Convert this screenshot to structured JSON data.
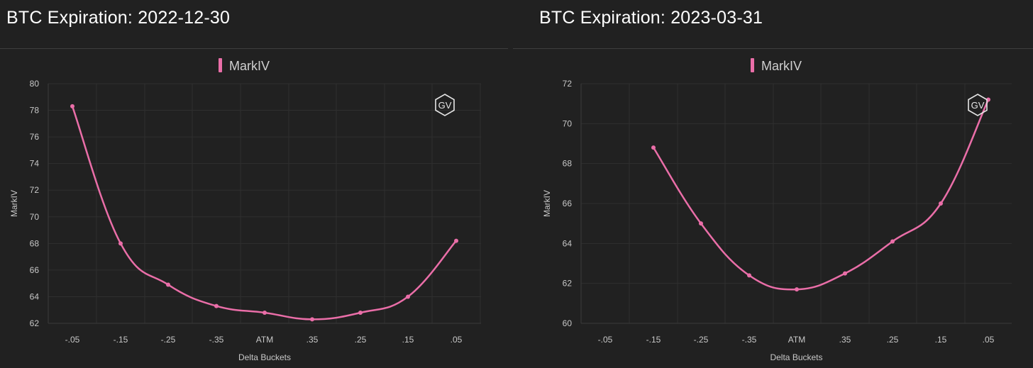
{
  "colors": {
    "background": "#212121",
    "title": "#ffffff",
    "series": "#ea6ea8",
    "grid": "#2f2f2f",
    "axis_line": "#3a3a3a",
    "tick_label": "#c8c8c8",
    "legend_text": "#cfcfcf",
    "logo": "#e6e6e6"
  },
  "charts": [
    {
      "title": "BTC Expiration: 2022-12-30",
      "logo_text": "GV"
    },
    {
      "title": "BTC Expiration: 2023-03-31",
      "logo_text": "GV"
    }
  ],
  "chart_data": [
    {
      "type": "line",
      "title": "BTC Expiration: 2022-12-30",
      "xlabel": "Delta Buckets",
      "ylabel": "MarkIV",
      "legend": "top-center",
      "grid": true,
      "ylim": [
        62,
        80
      ],
      "yticks": [
        62,
        64,
        66,
        68,
        70,
        72,
        74,
        76,
        78,
        80
      ],
      "categories": [
        "-.05",
        "-.15",
        "-.25",
        "-.35",
        "ATM",
        ".35",
        ".25",
        ".15",
        ".05"
      ],
      "series": [
        {
          "name": "MarkIV",
          "values": [
            78.3,
            68.0,
            64.9,
            63.3,
            62.8,
            62.3,
            62.8,
            64.0,
            68.2
          ]
        }
      ]
    },
    {
      "type": "line",
      "title": "BTC Expiration: 2023-03-31",
      "xlabel": "Delta Buckets",
      "ylabel": "MarkIV",
      "legend": "top-center",
      "grid": true,
      "ylim": [
        60,
        72
      ],
      "yticks": [
        60,
        62,
        64,
        66,
        68,
        70,
        72
      ],
      "categories": [
        "-.05",
        "-.15",
        "-.25",
        "-.35",
        "ATM",
        ".35",
        ".25",
        ".15",
        ".05"
      ],
      "series": [
        {
          "name": "MarkIV",
          "values": [
            null,
            68.8,
            65.0,
            62.4,
            61.7,
            62.5,
            64.1,
            66.0,
            71.2
          ]
        }
      ]
    }
  ]
}
